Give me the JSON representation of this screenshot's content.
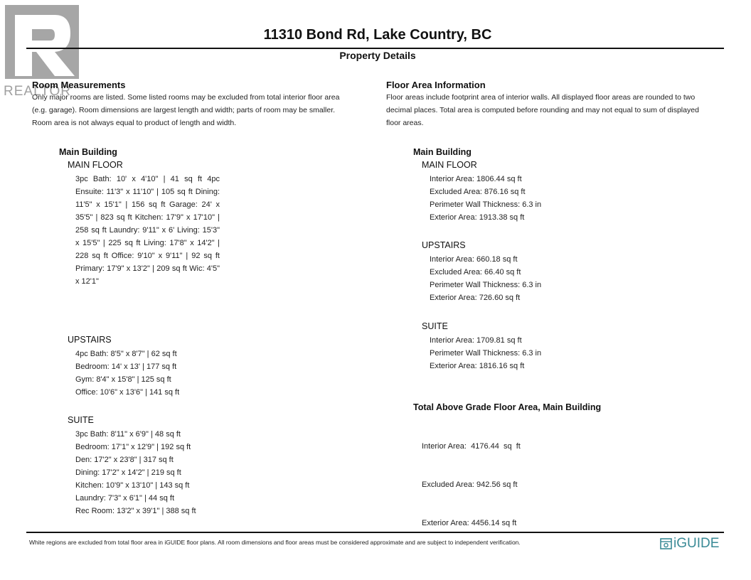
{
  "header": {
    "title": "11310 Bond Rd, Lake Country, BC",
    "subtitle": "Property Details",
    "logo_text": "REALTOR"
  },
  "room_measurements": {
    "heading": "Room Measurements",
    "description": [
      "Only major rooms are listed. Some listed rooms may be excluded from total interior floor area",
      "(e.g. garage). Room dimensions are largest length and width; parts of room may be smaller.",
      "Room area is not always equal to product of length and width."
    ],
    "building": "Main Building",
    "main_floor": {
      "label": "MAIN FLOOR",
      "text": "3pc Bath: 10' x 4'10\" | 41 sq ft 4pc Ensuite: 11'3\" x 11'10\" | 105 sq ft Dining: 11'5\" x 15'1\" | 156 sq ft Garage: 24' x 35'5\" | 823 sq ft Kitchen: 17'9\" x 17'10\" | 258 sq ft Laundry: 9'11\" x 6' Living: 15'3\" x 15'5\" | 225 sq ft Living: 17'8\" x 14'2\" | 228 sq ft Office: 9'10\" x 9'11\" | 92 sq ft Primary: 17'9\" x 13'2\" | 209 sq ft Wic: 4'5\" x 12'1\""
    },
    "upstairs": {
      "label": "UPSTAIRS",
      "rooms": [
        "4pc Bath: 8'5\" x 8'7\" | 62 sq ft",
        "Bedroom: 14' x 13' | 177 sq ft",
        "Gym: 8'4\" x 15'8\" | 125 sq ft",
        "Office: 10'6\" x 13'6\" | 141 sq ft"
      ]
    },
    "suite": {
      "label": "SUITE",
      "rooms": [
        "3pc Bath: 8'11\" x 6'9\" | 48 sq ft",
        "Bedroom: 17'1\" x 12'9\" | 192 sq ft",
        "Den: 17'2\" x 23'8\" | 317 sq ft",
        "Dining: 17'2\" x 14'2\" | 219 sq ft",
        "Kitchen: 10'9\" x 13'10\" | 143 sq ft",
        "Laundry: 7'3\" x 6'1\" | 44 sq ft",
        "Rec Room: 13'2\" x 39'1\" | 388 sq ft"
      ]
    }
  },
  "floor_area": {
    "heading": "Floor Area Information",
    "description": [
      "Floor areas include footprint area of interior walls. All displayed floor areas are rounded to two",
      "decimal places. Total area is computed before rounding and may not equal to sum of displayed",
      "floor areas."
    ],
    "building": "Main Building",
    "main_floor": {
      "label": "MAIN FLOOR",
      "lines": [
        "Interior Area: 1806.44 sq ft",
        "Excluded Area: 876.16 sq ft",
        "Perimeter Wall Thickness: 6.3 in",
        "Exterior Area: 1913.38 sq ft"
      ]
    },
    "upstairs": {
      "label": "UPSTAIRS",
      "lines": [
        "Interior Area: 660.18 sq ft",
        "Excluded Area: 66.40 sq ft",
        "Perimeter Wall Thickness: 6.3 in",
        "Exterior Area: 726.60 sq ft"
      ]
    },
    "suite": {
      "label": "SUITE",
      "lines": [
        "Interior Area: 1709.81 sq ft",
        "Perimeter Wall Thickness: 6.3 in",
        "Exterior Area: 1816.16 sq ft"
      ]
    },
    "total": {
      "label": "Total Above Grade Floor Area, Main Building",
      "lines": [
        "Interior Area:  4176.44  sq  ft",
        "Excluded Area: 942.56 sq ft",
        "Exterior Area: 4456.14 sq ft"
      ]
    }
  },
  "footer": {
    "disclaimer": "White regions are excluded from total floor area in iGUIDE floor plans. All room dimensions and floor areas must be considered approximate and are subject to independent verification.",
    "brand": "iGUIDE",
    "brand_color": "#3a8a96"
  }
}
